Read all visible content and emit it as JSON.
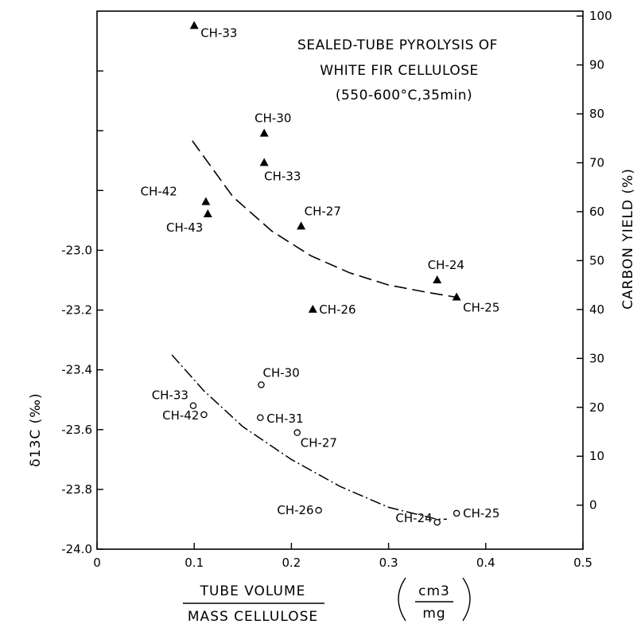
{
  "chart_data": {
    "type": "scatter",
    "title": [
      "SEALED-TUBE PYROLYSIS OF",
      "WHITE FIR CELLULOSE",
      "(550-600°C,35min)"
    ],
    "xlabel": {
      "numerator": "TUBE VOLUME",
      "denominator": "MASS CELLULOSE",
      "unit_num": "cm3",
      "unit_den": "mg"
    },
    "ylabel_left": "δ13C (‰)",
    "ylabel_right": "CARBON YIELD (%)",
    "xlim": [
      0,
      0.5
    ],
    "ylim_left": [
      -24.0,
      -22.2
    ],
    "ylim_right": [
      -9,
      101
    ],
    "x_ticks": [
      "0",
      "0.1",
      "0.2",
      "0.3",
      "0.4",
      "0.5"
    ],
    "y_left_ticks": [
      "-23.0",
      "-23.2",
      "-23.4",
      "-23.6",
      "-23.8",
      "-24.0"
    ],
    "y_right_ticks": [
      "100",
      "90",
      "80",
      "70",
      "60",
      "50",
      "40",
      "30",
      "20",
      "10",
      "0"
    ],
    "grid": false,
    "series": [
      {
        "name": "CARBON YIELD (%)",
        "marker": "filled-triangle",
        "axis": "right",
        "points": [
          {
            "x": 0.1,
            "y": 98,
            "label": "CH-33"
          },
          {
            "x": 0.172,
            "y": 76,
            "label": "CH-30"
          },
          {
            "x": 0.172,
            "y": 70,
            "label": "CH-33"
          },
          {
            "x": 0.112,
            "y": 62,
            "label": "CH-42"
          },
          {
            "x": 0.114,
            "y": 59.5,
            "label": "CH-43"
          },
          {
            "x": 0.21,
            "y": 57,
            "label": "CH-27"
          },
          {
            "x": 0.35,
            "y": 46,
            "label": "CH-24"
          },
          {
            "x": 0.37,
            "y": 42.5,
            "label": "CH-25"
          },
          {
            "x": 0.222,
            "y": 40,
            "label": "CH-26"
          }
        ],
        "fit": [
          [
            0.098,
            74.5
          ],
          [
            0.14,
            63
          ],
          [
            0.18,
            56
          ],
          [
            0.22,
            51
          ],
          [
            0.26,
            47.5
          ],
          [
            0.3,
            45
          ],
          [
            0.34,
            43.5
          ],
          [
            0.37,
            42.5
          ]
        ]
      },
      {
        "name": "δ13C (‰)",
        "marker": "open-circle",
        "axis": "left",
        "points": [
          {
            "x": 0.099,
            "y": -23.52,
            "label": "CH-33"
          },
          {
            "x": 0.11,
            "y": -23.55,
            "label": "CH-42"
          },
          {
            "x": 0.169,
            "y": -23.45,
            "label": "CH-30"
          },
          {
            "x": 0.168,
            "y": -23.56,
            "label": "CH-31"
          },
          {
            "x": 0.206,
            "y": -23.61,
            "label": "CH-27"
          },
          {
            "x": 0.228,
            "y": -23.87,
            "label": "CH-26"
          },
          {
            "x": 0.35,
            "y": -23.91,
            "label": "CH-24"
          },
          {
            "x": 0.37,
            "y": -23.88,
            "label": "CH-25"
          }
        ],
        "fit": [
          [
            0.077,
            -23.35
          ],
          [
            0.11,
            -23.47
          ],
          [
            0.15,
            -23.59
          ],
          [
            0.2,
            -23.7
          ],
          [
            0.25,
            -23.79
          ],
          [
            0.3,
            -23.86
          ],
          [
            0.35,
            -23.9
          ],
          [
            0.36,
            -23.9
          ]
        ]
      }
    ]
  }
}
